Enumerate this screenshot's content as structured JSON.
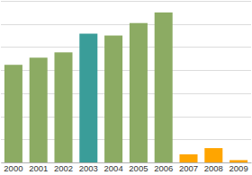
{
  "chart_data": {
    "type": "bar",
    "categories": [
      "2000",
      "2001",
      "2002",
      "2003",
      "2004",
      "2005",
      "2006",
      "2007",
      "2008",
      "2009"
    ],
    "values": [
      4.23,
      4.54,
      4.77,
      5.58,
      5.5,
      6.04,
      6.5,
      0.35,
      0.62,
      0.1
    ],
    "colors": [
      "#8cab63",
      "#8cab63",
      "#8cab63",
      "#3a9d99",
      "#8cab63",
      "#8cab63",
      "#8cab63",
      "#ffa500",
      "#ffa500",
      "#ffa500"
    ],
    "ylim": [
      0,
      7
    ],
    "yticks": [
      0,
      1,
      2,
      3,
      4,
      5,
      6,
      7
    ],
    "grid": true,
    "tick_labels": "x"
  }
}
